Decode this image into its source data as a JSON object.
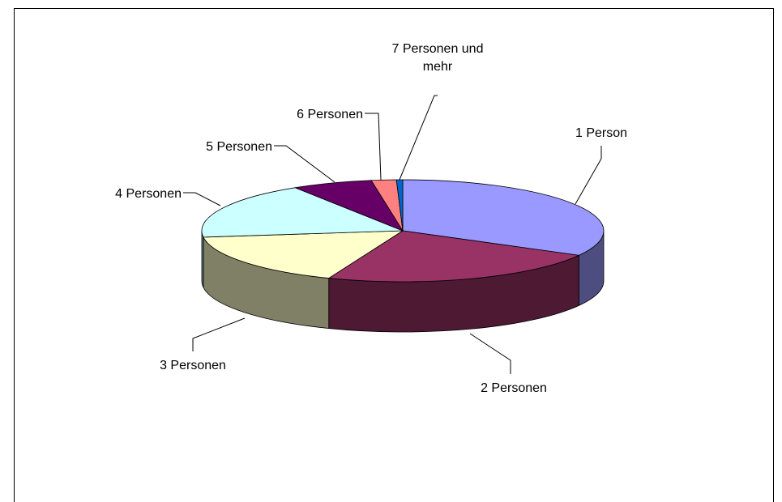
{
  "chart_data": {
    "type": "pie",
    "categories": [
      "1 Person",
      "2 Personen",
      "3 Personen",
      "4 Personen",
      "5 Personen",
      "6 Personen",
      "7 Personen und mehr"
    ],
    "values": [
      33,
      23,
      17,
      18,
      6.5,
      2,
      0.5
    ],
    "colors": [
      "#9999ff",
      "#993366",
      "#ffffcc",
      "#ccffff",
      "#660066",
      "#ff8080",
      "#0066cc"
    ],
    "side_colors": [
      "#4d4d80",
      "#4d1933",
      "#808066",
      "#668080",
      "#330033",
      "#804040",
      "#003366"
    ]
  }
}
